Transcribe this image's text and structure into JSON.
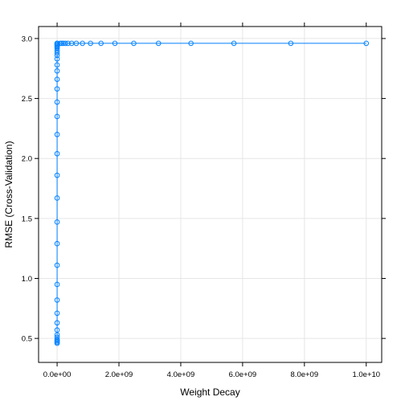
{
  "chart_data": {
    "type": "line",
    "xlabel": "Weight Decay",
    "ylabel": "RMSE (Cross-Validation)",
    "xlim": [
      -600000000,
      10500000000
    ],
    "ylim": [
      0.3,
      3.1
    ],
    "x_ticks": [
      0,
      2000000000,
      4000000000,
      6000000000,
      8000000000,
      10000000000
    ],
    "x_tick_labels": [
      "0.0e+00",
      "2.0e+09",
      "4.0e+09",
      "6.0e+09",
      "8.0e+09",
      "1.0e+10"
    ],
    "y_ticks": [
      0.5,
      1.0,
      1.5,
      2.0,
      2.5,
      3.0
    ],
    "y_tick_labels": [
      "0.5",
      "1.0",
      "1.5",
      "2.0",
      "2.5",
      "3.0"
    ],
    "grid": true,
    "series": [
      {
        "color": "#0080ff",
        "marker": "open-circle",
        "x": [
          0,
          0,
          0,
          0,
          0,
          0,
          0,
          0,
          0,
          0,
          0,
          0,
          0,
          0,
          0,
          0,
          0,
          0,
          0,
          0,
          0,
          0,
          0,
          0,
          0,
          0,
          0,
          0,
          0,
          0,
          0,
          0,
          0,
          0,
          0,
          100000000,
          150000000,
          200000000,
          270000000,
          350000000,
          470000000,
          620000000,
          820000000,
          1080000000,
          1420000000,
          1870000000,
          2480000000,
          3280000000,
          4330000000,
          5720000000,
          7560000000,
          10000000000
        ],
        "y": [
          0.46,
          0.47,
          0.48,
          0.49,
          0.51,
          0.53,
          0.57,
          0.63,
          0.71,
          0.82,
          0.95,
          1.11,
          1.29,
          1.47,
          1.67,
          1.86,
          2.04,
          2.2,
          2.35,
          2.47,
          2.58,
          2.66,
          2.73,
          2.78,
          2.83,
          2.86,
          2.88,
          2.9,
          2.92,
          2.93,
          2.94,
          2.95,
          2.95,
          2.96,
          2.96,
          2.96,
          2.96,
          2.96,
          2.96,
          2.96,
          2.96,
          2.96,
          2.96,
          2.96,
          2.96,
          2.96,
          2.96,
          2.96,
          2.96,
          2.96,
          2.96,
          2.96
        ]
      }
    ]
  }
}
